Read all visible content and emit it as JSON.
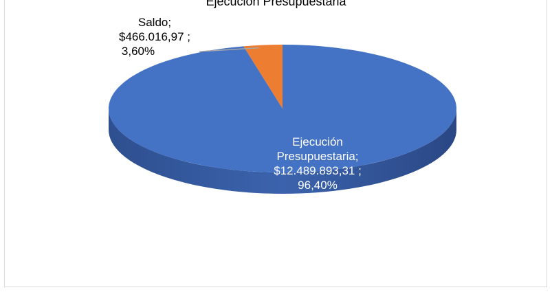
{
  "chart_data": {
    "type": "pie",
    "title": "Ejecución Presupuestaria",
    "slices": [
      {
        "name": "Ejecución Presupuestaria",
        "value": 12489893.31,
        "percent": 96.4,
        "color": "#4472c4",
        "label_lines": [
          "Ejecución",
          "Presupuestaria;",
          "$12.489.893,31  ;",
          "96,40%"
        ]
      },
      {
        "name": "Saldo",
        "value": 466016.97,
        "percent": 3.6,
        "color": "#ed7d31",
        "label_lines": [
          "Saldo;",
          "$466.016,97  ;",
          "3,60%"
        ]
      }
    ],
    "style": "3d-pie",
    "legend": "none"
  }
}
